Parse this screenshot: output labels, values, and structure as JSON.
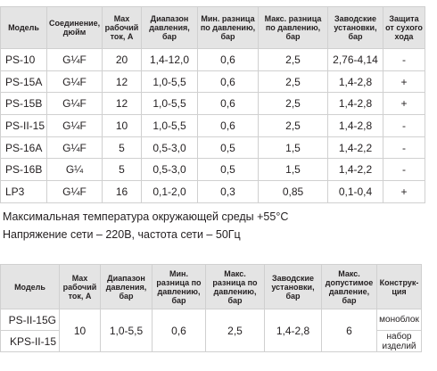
{
  "table1": {
    "headers": [
      "Модель",
      "Соединение, дюйм",
      "Мах рабочий ток, А",
      "Диапазон давления, бар",
      "Мин. разница по давлению, бар",
      "Макс. разница по давлению, бар",
      "Заводские установки, бар",
      "Защита от сухого хода"
    ],
    "rows": [
      [
        "PS-10",
        "G¼F",
        "20",
        "1,4-12,0",
        "0,6",
        "2,5",
        "2,76-4,14",
        "-"
      ],
      [
        "PS-15A",
        "G¼F",
        "12",
        "1,0-5,5",
        "0,6",
        "2,5",
        "1,4-2,8",
        "+"
      ],
      [
        "PS-15B",
        "G¼F",
        "12",
        "1,0-5,5",
        "0,6",
        "2,5",
        "1,4-2,8",
        "+"
      ],
      [
        "PS-II-15",
        "G¼F",
        "10",
        "1,0-5,5",
        "0,6",
        "2,5",
        "1,4-2,8",
        "-"
      ],
      [
        "PS-16A",
        "G¼F",
        "5",
        "0,5-3,0",
        "0,5",
        "1,5",
        "1,4-2,2",
        "-"
      ],
      [
        "PS-16B",
        "G¼",
        "5",
        "0,5-3,0",
        "0,5",
        "1,5",
        "1,4-2,2",
        "-"
      ],
      [
        "LP3",
        "G¼F",
        "16",
        "0,1-2,0",
        "0,3",
        "0,85",
        "0,1-0,4",
        "+"
      ]
    ]
  },
  "notes": {
    "line1": "Максимальная температура окружающей среды +55°C",
    "line2": "Напряжение сети – 220В, частота сети – 50Гц"
  },
  "table2": {
    "headers": [
      "Модель",
      "Мах рабочий ток, А",
      "Диапазон давления, бар",
      "Мин. разница по давлению, бар",
      "Макс. разница по давлению, бар",
      "Заводские установки, бар",
      "Макс. допустимое давление, бар",
      "Конструк-ция"
    ],
    "rows": [
      {
        "model": "PS-II-15G",
        "construction": "моноблок"
      },
      {
        "model": "KPS-II-15",
        "construction": "набор изделий"
      }
    ],
    "shared": {
      "current": "10",
      "range": "1,0-5,5",
      "min_diff": "0,6",
      "max_diff": "2,5",
      "factory": "1,4-2,8",
      "max_pressure": "6"
    }
  }
}
